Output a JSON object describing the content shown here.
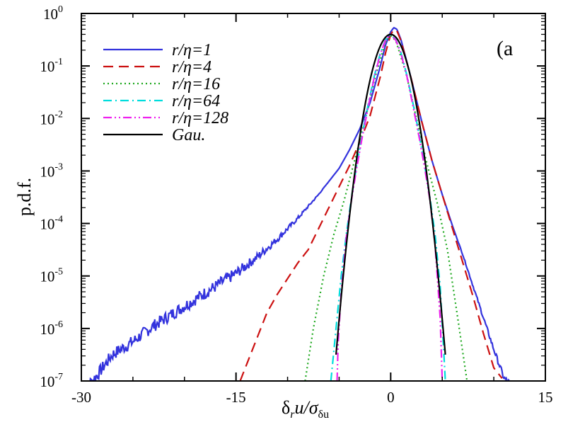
{
  "chart_data": {
    "type": "line",
    "title": "",
    "panel_label": "(a",
    "xlabel": {
      "main": "δ",
      "sub1": "r",
      "mid": "u/σ",
      "sub2": "δu"
    },
    "ylabel": "p.d.f.",
    "xlim": [
      -30,
      15
    ],
    "ylim_log10": [
      -7,
      0
    ],
    "yscale": "log",
    "x_ticks": [
      {
        "value": -30,
        "label": "-30"
      },
      {
        "value": -15,
        "label": "-15"
      },
      {
        "value": 0,
        "label": "0"
      },
      {
        "value": 15,
        "label": "15"
      }
    ],
    "y_ticks": [
      {
        "exp": 0,
        "base": "10",
        "sup": "0"
      },
      {
        "exp": -1,
        "base": "10",
        "sup": "-1"
      },
      {
        "exp": -2,
        "base": "10",
        "sup": "-2"
      },
      {
        "exp": -3,
        "base": "10",
        "sup": "-3"
      },
      {
        "exp": -4,
        "base": "10",
        "sup": "-4"
      },
      {
        "exp": -5,
        "base": "10",
        "sup": "-5"
      },
      {
        "exp": -6,
        "base": "10",
        "sup": "-6"
      },
      {
        "exp": -7,
        "base": "10",
        "sup": "-7"
      }
    ],
    "legend_position": "top-left",
    "series": [
      {
        "name": "r/η=1",
        "color": "#3333dd",
        "dash": "solid",
        "noisy_tail": true,
        "x": [
          -30,
          -28.5,
          -27,
          -25,
          -23,
          -21,
          -19,
          -17,
          -15,
          -13,
          -11,
          -9,
          -7,
          -5,
          -4,
          -3,
          -2,
          -1,
          -0.5,
          0,
          0.3,
          0.6,
          1,
          2,
          3,
          4,
          5,
          6,
          7,
          8,
          9,
          10,
          11,
          11.6
        ],
        "y": [
          -7.2,
          -6.9,
          -6.5,
          -6.25,
          -5.95,
          -5.7,
          -5.45,
          -5.2,
          -4.95,
          -4.65,
          -4.3,
          -3.9,
          -3.45,
          -2.95,
          -2.6,
          -2.2,
          -1.7,
          -1.0,
          -0.6,
          -0.35,
          -0.27,
          -0.3,
          -0.5,
          -1.25,
          -2.05,
          -2.8,
          -3.45,
          -4.05,
          -4.6,
          -5.2,
          -5.8,
          -6.4,
          -6.95,
          -7.05
        ]
      },
      {
        "name": "r/η=4",
        "color": "#cc1111",
        "dash": "dashed",
        "x": [
          -14.6,
          -13,
          -12,
          -11,
          -10,
          -9,
          -8,
          -7,
          -6,
          -5,
          -4,
          -3,
          -2,
          -1,
          -0.5,
          0,
          0.3,
          0.6,
          1,
          2,
          3,
          4,
          5,
          6,
          7,
          8,
          9,
          10,
          10.8
        ],
        "y": [
          -7.0,
          -6.2,
          -5.7,
          -5.35,
          -5.05,
          -4.75,
          -4.5,
          -4.1,
          -3.7,
          -3.3,
          -2.9,
          -2.45,
          -1.95,
          -1.2,
          -0.75,
          -0.4,
          -0.31,
          -0.33,
          -0.52,
          -1.25,
          -2.05,
          -2.8,
          -3.45,
          -4.1,
          -4.75,
          -5.4,
          -6.1,
          -6.75,
          -6.95
        ]
      },
      {
        "name": "r/η=16",
        "color": "#22aa22",
        "dash": "dotted",
        "x": [
          -8.3,
          -7.5,
          -6.5,
          -5.5,
          -4.5,
          -3.5,
          -2.5,
          -1.5,
          -0.5,
          0,
          0.5,
          1.5,
          2.5,
          3.5,
          4.5,
          5.5,
          6.5,
          7.4
        ],
        "y": [
          -7.0,
          -6.0,
          -5.0,
          -4.2,
          -3.55,
          -2.8,
          -2.05,
          -1.2,
          -0.55,
          -0.42,
          -0.52,
          -1.15,
          -2.0,
          -2.85,
          -3.6,
          -4.5,
          -5.8,
          -7.0
        ]
      },
      {
        "name": "r/η=64",
        "color": "#00dddd",
        "dash": "dashdot",
        "x": [
          -5.8,
          -5.3,
          -4.8,
          -4.3,
          -3.8,
          -3.3,
          -2.8,
          -2.2,
          -1.6,
          -1,
          -0.5,
          0,
          0.5,
          1,
          1.6,
          2.2,
          2.8,
          3.3,
          3.8,
          4.3,
          4.8,
          5.3
        ],
        "y": [
          -7.0,
          -6.0,
          -5.0,
          -4.2,
          -3.5,
          -2.9,
          -2.35,
          -1.75,
          -1.2,
          -0.75,
          -0.5,
          -0.4,
          -0.5,
          -0.75,
          -1.2,
          -1.75,
          -2.35,
          -2.9,
          -3.5,
          -4.2,
          -5.2,
          -7.0
        ]
      },
      {
        "name": "r/η=128",
        "color": "#ee22ee",
        "dash": "dashdotdot",
        "x": [
          -5.2,
          -5.1,
          -4.8,
          -4.3,
          -3.8,
          -3.3,
          -2.8,
          -2.2,
          -1.6,
          -1,
          -0.5,
          0,
          0.5,
          1,
          1.6,
          2.2,
          2.8,
          3.3,
          3.8,
          4.3,
          4.8,
          5.0
        ],
        "y": [
          -7.0,
          -6.3,
          -5.3,
          -4.25,
          -3.55,
          -2.95,
          -2.4,
          -1.8,
          -1.22,
          -0.77,
          -0.51,
          -0.4,
          -0.51,
          -0.77,
          -1.22,
          -1.8,
          -2.4,
          -2.95,
          -3.55,
          -4.4,
          -5.8,
          -7.0
        ]
      },
      {
        "name": "Gau.",
        "color": "#000000",
        "dash": "solid",
        "gaussian": true,
        "xrange": [
          -5.3,
          5.3
        ],
        "y": []
      }
    ]
  }
}
